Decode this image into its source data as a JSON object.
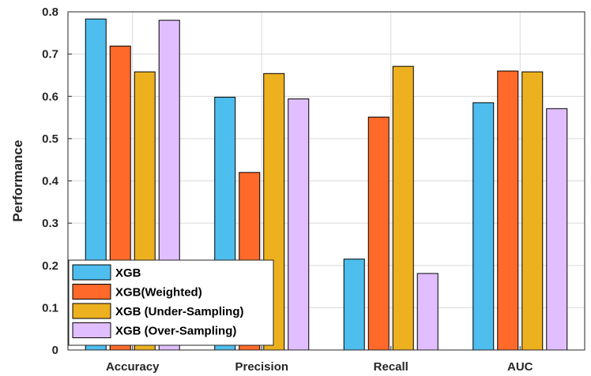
{
  "chart_data": {
    "type": "bar",
    "title": "",
    "xlabel": "",
    "ylabel": "Performance",
    "ylim": [
      0,
      0.8
    ],
    "yticks": [
      "0",
      "0.1",
      "0.2",
      "0.3",
      "0.4",
      "0.5",
      "0.6",
      "0.7",
      "0.8"
    ],
    "grid": true,
    "legend_position": "bottom-left",
    "categories": [
      "Accuracy",
      "Precision",
      "Recall",
      "AUC"
    ],
    "series": [
      {
        "name": "XGB",
        "color": "#4DBEEE",
        "values": [
          0.783,
          0.598,
          0.215,
          0.585
        ]
      },
      {
        "name": "XGB(Weighted)",
        "color": "#FF6929",
        "values": [
          0.719,
          0.42,
          0.551,
          0.66
        ]
      },
      {
        "name": "XGB (Under-Sampling)",
        "color": "#EDB120",
        "values": [
          0.658,
          0.654,
          0.671,
          0.658
        ]
      },
      {
        "name": "XGB (Over-Sampling)",
        "color": "#E1BEFF",
        "values": [
          0.78,
          0.594,
          0.181,
          0.571
        ]
      }
    ]
  }
}
